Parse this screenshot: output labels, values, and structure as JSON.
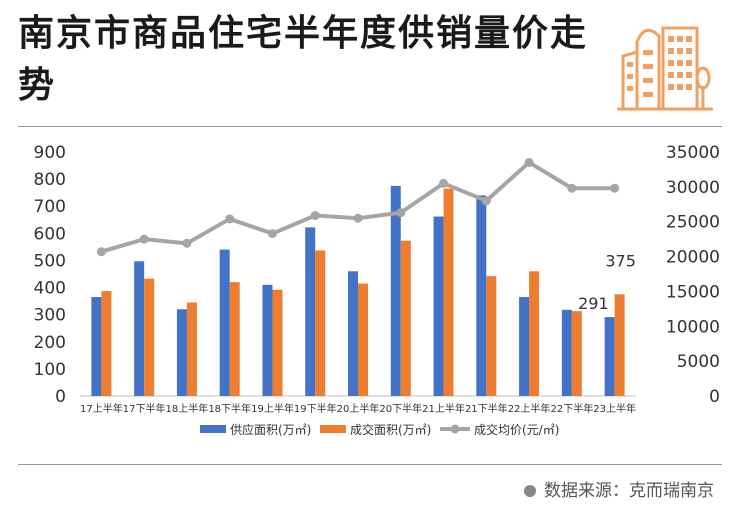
{
  "title": "南京市商品住宅半年度供销量价走势",
  "source": "数据来源：克而瑞南京",
  "colors": {
    "supply": "#4472C4",
    "deal": "#ED7D31",
    "price": "#A5A5A5",
    "logo": "#F0A060"
  },
  "chart_data": {
    "type": "bar",
    "categories": [
      "17上半年",
      "17下半年",
      "18上半年",
      "18下半年",
      "19上半年",
      "19下半年",
      "20上半年",
      "20下半年",
      "21上半年",
      "21下半年",
      "22上半年",
      "22下半年",
      "23上半年"
    ],
    "series": [
      {
        "name": "供应面积(万㎡)",
        "type": "bar",
        "axis": "left",
        "values": [
          365,
          497,
          320,
          540,
          410,
          622,
          460,
          775,
          662,
          740,
          365,
          318,
          291
        ]
      },
      {
        "name": "成交面积(万㎡)",
        "type": "bar",
        "axis": "left",
        "values": [
          387,
          433,
          345,
          420,
          392,
          537,
          415,
          573,
          765,
          442,
          460,
          313,
          375
        ]
      },
      {
        "name": "成交均价(元/㎡)",
        "type": "line",
        "axis": "right",
        "values": [
          20700,
          22500,
          21900,
          25400,
          23300,
          25900,
          25500,
          26300,
          30500,
          28000,
          33500,
          29800,
          29800
        ]
      }
    ],
    "y_left": {
      "min": 0,
      "max": 900,
      "ticks": [
        0,
        100,
        200,
        300,
        400,
        500,
        600,
        700,
        800,
        900
      ]
    },
    "y_right": {
      "min": 0,
      "max": 35000,
      "ticks": [
        0,
        5000,
        10000,
        15000,
        20000,
        25000,
        30000,
        35000
      ]
    },
    "data_labels": [
      {
        "series": 0,
        "index": 12,
        "text": "291"
      },
      {
        "series": 1,
        "index": 12,
        "text": "375"
      }
    ],
    "legend_position": "bottom",
    "grid": false
  }
}
